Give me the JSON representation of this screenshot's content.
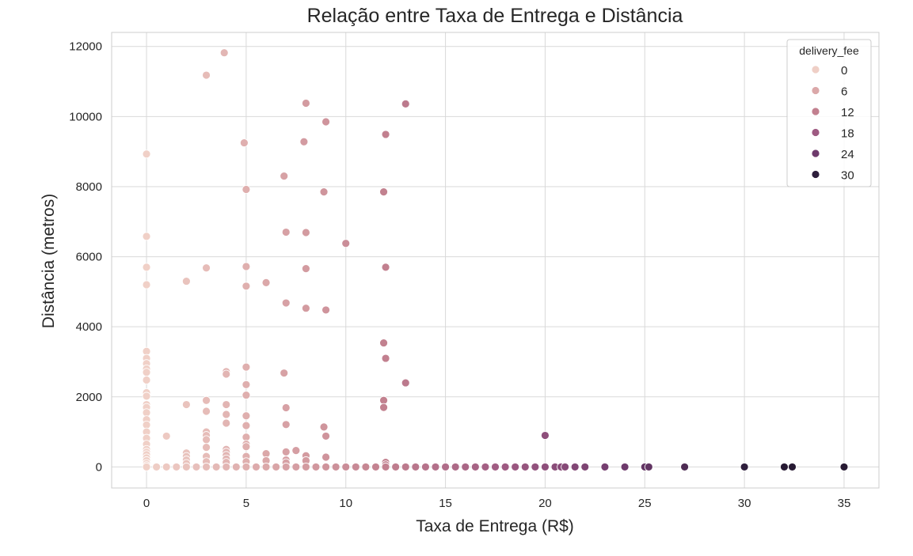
{
  "chart_data": {
    "type": "scatter",
    "title": "Relação entre Taxa de Entrega e Distância",
    "xlabel": "Taxa de Entrega (R$)",
    "ylabel": "Distância (metros)",
    "xlim": [
      -1.75,
      36.75
    ],
    "ylim": [
      -600,
      12400
    ],
    "xticks": [
      0,
      5,
      10,
      15,
      20,
      25,
      30,
      35
    ],
    "yticks": [
      0,
      2000,
      4000,
      6000,
      8000,
      10000,
      12000
    ],
    "grid": true,
    "hue_variable": "delivery_fee",
    "legend": {
      "title": "delivery_fee",
      "placement": "top-right",
      "entries": [
        {
          "label": "0",
          "color": "#efcfc6"
        },
        {
          "label": "6",
          "color": "#dba8a9"
        },
        {
          "label": "12",
          "color": "#c2808f"
        },
        {
          "label": "18",
          "color": "#9e5a82"
        },
        {
          "label": "24",
          "color": "#6e3a6c"
        },
        {
          "label": "30",
          "color": "#2e1e3c"
        }
      ]
    },
    "points": [
      {
        "x": 0,
        "y": 8930
      },
      {
        "x": 0,
        "y": 6580
      },
      {
        "x": 0,
        "y": 5700
      },
      {
        "x": 0,
        "y": 5200
      },
      {
        "x": 0,
        "y": 3300
      },
      {
        "x": 0,
        "y": 3100
      },
      {
        "x": 0,
        "y": 2950
      },
      {
        "x": 0,
        "y": 2800
      },
      {
        "x": 0,
        "y": 2700
      },
      {
        "x": 0,
        "y": 2480
      },
      {
        "x": 0,
        "y": 2120
      },
      {
        "x": 0,
        "y": 2020
      },
      {
        "x": 0,
        "y": 1780
      },
      {
        "x": 0,
        "y": 1700
      },
      {
        "x": 0,
        "y": 1550
      },
      {
        "x": 0,
        "y": 1350
      },
      {
        "x": 0,
        "y": 1200
      },
      {
        "x": 0,
        "y": 1000
      },
      {
        "x": 0,
        "y": 820
      },
      {
        "x": 0,
        "y": 650
      },
      {
        "x": 0,
        "y": 500
      },
      {
        "x": 0,
        "y": 420
      },
      {
        "x": 0,
        "y": 350
      },
      {
        "x": 0,
        "y": 260
      },
      {
        "x": 0,
        "y": 180
      },
      {
        "x": 0,
        "y": 100
      },
      {
        "x": 0,
        "y": 40
      },
      {
        "x": 0,
        "y": 0
      },
      {
        "x": 1,
        "y": 880
      },
      {
        "x": 2,
        "y": 5300
      },
      {
        "x": 2,
        "y": 1780
      },
      {
        "x": 2,
        "y": 400
      },
      {
        "x": 2,
        "y": 300
      },
      {
        "x": 2,
        "y": 200
      },
      {
        "x": 2,
        "y": 100
      },
      {
        "x": 3,
        "y": 11180
      },
      {
        "x": 3,
        "y": 5680
      },
      {
        "x": 3,
        "y": 1900
      },
      {
        "x": 3,
        "y": 1590
      },
      {
        "x": 3,
        "y": 1000
      },
      {
        "x": 3,
        "y": 900
      },
      {
        "x": 3,
        "y": 780
      },
      {
        "x": 3,
        "y": 560
      },
      {
        "x": 3,
        "y": 300
      },
      {
        "x": 3,
        "y": 150
      },
      {
        "x": 3.9,
        "y": 11820
      },
      {
        "x": 4,
        "y": 2720
      },
      {
        "x": 4,
        "y": 2650
      },
      {
        "x": 4,
        "y": 1780
      },
      {
        "x": 4,
        "y": 1500
      },
      {
        "x": 4,
        "y": 1250
      },
      {
        "x": 4,
        "y": 500
      },
      {
        "x": 4,
        "y": 420
      },
      {
        "x": 4,
        "y": 330
      },
      {
        "x": 4,
        "y": 230
      },
      {
        "x": 4,
        "y": 130
      },
      {
        "x": 4.9,
        "y": 9250
      },
      {
        "x": 5,
        "y": 7920
      },
      {
        "x": 5,
        "y": 5720
      },
      {
        "x": 5,
        "y": 5160
      },
      {
        "x": 5,
        "y": 2850
      },
      {
        "x": 5,
        "y": 2350
      },
      {
        "x": 5,
        "y": 2050
      },
      {
        "x": 5,
        "y": 1460
      },
      {
        "x": 5,
        "y": 1180
      },
      {
        "x": 5,
        "y": 850
      },
      {
        "x": 5,
        "y": 650
      },
      {
        "x": 5,
        "y": 580
      },
      {
        "x": 5,
        "y": 300
      },
      {
        "x": 5,
        "y": 150
      },
      {
        "x": 6,
        "y": 5260
      },
      {
        "x": 6,
        "y": 380
      },
      {
        "x": 6,
        "y": 180
      },
      {
        "x": 6.9,
        "y": 8300
      },
      {
        "x": 6.9,
        "y": 2680
      },
      {
        "x": 7,
        "y": 6700
      },
      {
        "x": 7,
        "y": 4680
      },
      {
        "x": 7,
        "y": 1690
      },
      {
        "x": 7,
        "y": 1210
      },
      {
        "x": 7,
        "y": 430
      },
      {
        "x": 7,
        "y": 200
      },
      {
        "x": 7,
        "y": 120
      },
      {
        "x": 7.5,
        "y": 470
      },
      {
        "x": 8,
        "y": 10380
      },
      {
        "x": 7.9,
        "y": 9280
      },
      {
        "x": 8,
        "y": 6690
      },
      {
        "x": 8,
        "y": 5660
      },
      {
        "x": 8,
        "y": 4530
      },
      {
        "x": 8,
        "y": 320
      },
      {
        "x": 8,
        "y": 180
      },
      {
        "x": 9,
        "y": 9850
      },
      {
        "x": 8.9,
        "y": 7850
      },
      {
        "x": 9,
        "y": 4480
      },
      {
        "x": 8.9,
        "y": 1140
      },
      {
        "x": 9,
        "y": 880
      },
      {
        "x": 9,
        "y": 280
      },
      {
        "x": 10,
        "y": 6380
      },
      {
        "x": 11.9,
        "y": 7850
      },
      {
        "x": 12,
        "y": 9490
      },
      {
        "x": 12,
        "y": 5700
      },
      {
        "x": 11.9,
        "y": 3540
      },
      {
        "x": 12,
        "y": 3100
      },
      {
        "x": 11.9,
        "y": 1900
      },
      {
        "x": 11.9,
        "y": 1700
      },
      {
        "x": 12,
        "y": 130
      },
      {
        "x": 12,
        "y": 60
      },
      {
        "x": 13,
        "y": 10360
      },
      {
        "x": 13,
        "y": 2400
      },
      {
        "x": 20,
        "y": 900
      },
      {
        "x": 0.5,
        "y": 0
      },
      {
        "x": 1,
        "y": 0
      },
      {
        "x": 1.5,
        "y": 0
      },
      {
        "x": 2,
        "y": 0
      },
      {
        "x": 2.5,
        "y": 0
      },
      {
        "x": 3,
        "y": 0
      },
      {
        "x": 3.5,
        "y": 0
      },
      {
        "x": 4,
        "y": 0
      },
      {
        "x": 4.5,
        "y": 0
      },
      {
        "x": 5,
        "y": 0
      },
      {
        "x": 5.5,
        "y": 0
      },
      {
        "x": 6,
        "y": 0
      },
      {
        "x": 6.5,
        "y": 0
      },
      {
        "x": 7,
        "y": 0
      },
      {
        "x": 7.5,
        "y": 0
      },
      {
        "x": 8,
        "y": 0
      },
      {
        "x": 8.5,
        "y": 0
      },
      {
        "x": 9,
        "y": 0
      },
      {
        "x": 9.5,
        "y": 0
      },
      {
        "x": 10,
        "y": 0
      },
      {
        "x": 10.5,
        "y": 0
      },
      {
        "x": 11,
        "y": 0
      },
      {
        "x": 11.5,
        "y": 0
      },
      {
        "x": 12,
        "y": 0
      },
      {
        "x": 12.5,
        "y": 0
      },
      {
        "x": 13,
        "y": 0
      },
      {
        "x": 13.5,
        "y": 0
      },
      {
        "x": 14,
        "y": 0
      },
      {
        "x": 14.5,
        "y": 0
      },
      {
        "x": 15,
        "y": 0
      },
      {
        "x": 15.5,
        "y": 0
      },
      {
        "x": 16,
        "y": 0
      },
      {
        "x": 16.5,
        "y": 0
      },
      {
        "x": 17,
        "y": 0
      },
      {
        "x": 17.5,
        "y": 0
      },
      {
        "x": 18,
        "y": 0
      },
      {
        "x": 18.5,
        "y": 0
      },
      {
        "x": 19,
        "y": 0
      },
      {
        "x": 19.5,
        "y": 0
      },
      {
        "x": 20,
        "y": 0
      },
      {
        "x": 20.5,
        "y": 0
      },
      {
        "x": 20.8,
        "y": 0
      },
      {
        "x": 21,
        "y": 0
      },
      {
        "x": 21.5,
        "y": 0
      },
      {
        "x": 22,
        "y": 0
      },
      {
        "x": 23,
        "y": 0
      },
      {
        "x": 24,
        "y": 0
      },
      {
        "x": 25,
        "y": 0
      },
      {
        "x": 25.2,
        "y": 0
      },
      {
        "x": 27,
        "y": 0
      },
      {
        "x": 30,
        "y": 0
      },
      {
        "x": 32,
        "y": 0
      },
      {
        "x": 32.4,
        "y": 0
      },
      {
        "x": 35,
        "y": 0
      }
    ]
  }
}
